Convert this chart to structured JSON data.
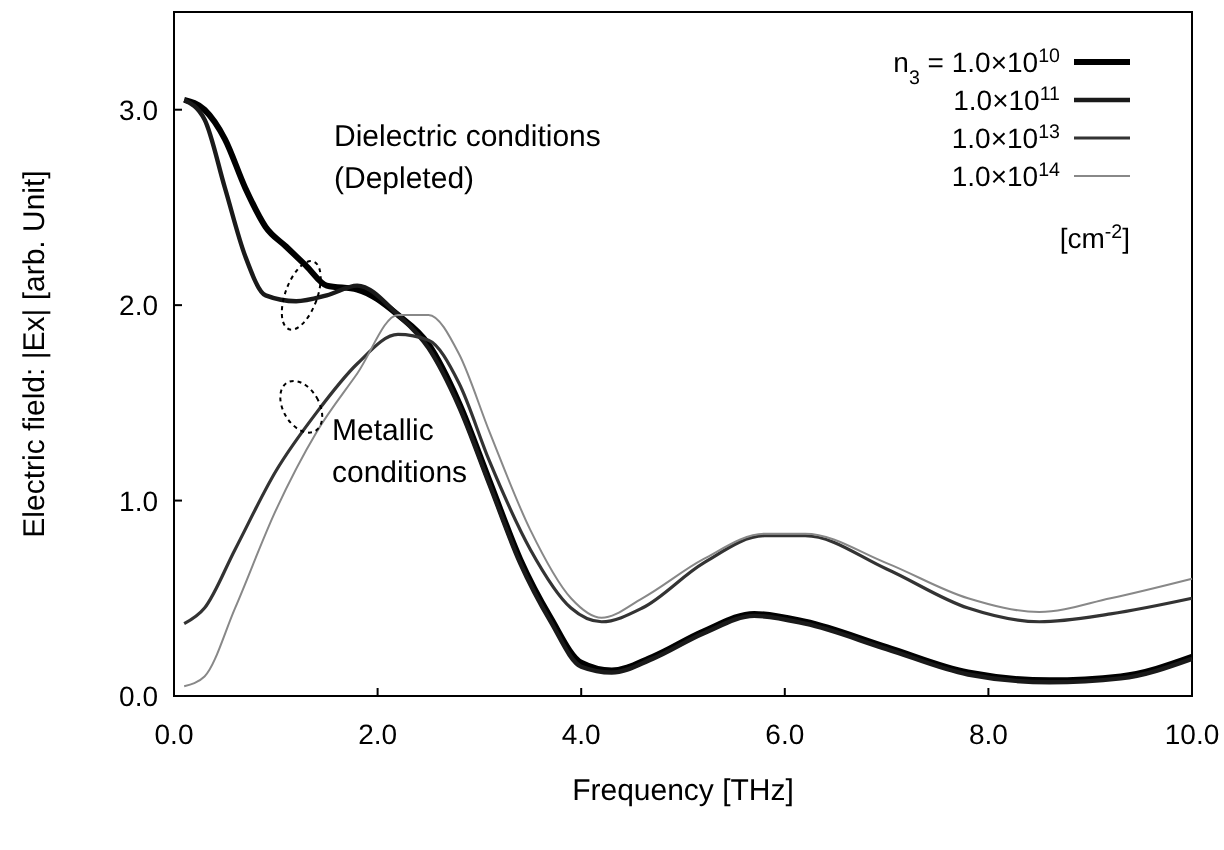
{
  "chart_data": {
    "type": "line",
    "xlabel": "Frequency [THz]",
    "ylabel": "Electric field: |Ex| [arb. Unit]",
    "xlim": [
      0,
      10
    ],
    "ylim": [
      0,
      3.5
    ],
    "xticks": [
      {
        "value": 0,
        "label": "0.0"
      },
      {
        "value": 2,
        "label": "2.0"
      },
      {
        "value": 4,
        "label": "4.0"
      },
      {
        "value": 6,
        "label": "6.0"
      },
      {
        "value": 8,
        "label": "8.0"
      },
      {
        "value": 10,
        "label": "10.0"
      }
    ],
    "yticks": [
      {
        "value": 0,
        "label": "0.0"
      },
      {
        "value": 1,
        "label": "1.0"
      },
      {
        "value": 2,
        "label": "2.0"
      },
      {
        "value": 3,
        "label": "3.0"
      }
    ],
    "grid": false,
    "legend": "top right",
    "marker": "none",
    "line_style": "solid",
    "series": [
      {
        "name": "n$_{3}$ = 1.0×10$^{10}$",
        "color": "#000000",
        "x": [
          0.1,
          0.3,
          0.5,
          0.7,
          0.9,
          1.1,
          1.3,
          1.5,
          1.8,
          2.2,
          2.5,
          2.8,
          3.1,
          3.4,
          3.7,
          4.0,
          4.3,
          4.7,
          5.2,
          5.7,
          6.2,
          7.0,
          7.8,
          8.6,
          9.3,
          10
        ],
        "values": [
          3.05,
          3.0,
          2.85,
          2.6,
          2.4,
          2.3,
          2.2,
          2.1,
          2.08,
          1.95,
          1.8,
          1.5,
          1.1,
          0.7,
          0.4,
          0.17,
          0.13,
          0.2,
          0.33,
          0.42,
          0.38,
          0.25,
          0.12,
          0.08,
          0.1,
          0.2
        ]
      },
      {
        "name": "1.0×10$^{11}$",
        "color": "#1a1a1a",
        "x": [
          0.1,
          0.3,
          0.5,
          0.7,
          0.9,
          1.2,
          1.5,
          1.8,
          2.2,
          2.5,
          2.8,
          3.1,
          3.4,
          3.7,
          4.0,
          4.3,
          4.7,
          5.2,
          5.7,
          6.2,
          7.0,
          7.8,
          8.6,
          9.3,
          10
        ],
        "values": [
          3.05,
          2.95,
          2.6,
          2.25,
          2.05,
          2.02,
          2.05,
          2.1,
          1.95,
          1.78,
          1.48,
          1.08,
          0.68,
          0.38,
          0.15,
          0.12,
          0.19,
          0.32,
          0.41,
          0.37,
          0.24,
          0.11,
          0.07,
          0.09,
          0.19
        ]
      },
      {
        "name": "1.0×10$^{13}$",
        "color": "#333333",
        "x": [
          0.1,
          0.3,
          0.6,
          1.0,
          1.4,
          1.8,
          2.2,
          2.5,
          2.8,
          3.1,
          3.5,
          3.9,
          4.2,
          4.6,
          5.2,
          5.8,
          6.2,
          7.0,
          7.8,
          8.5,
          9.2,
          10
        ],
        "values": [
          0.37,
          0.45,
          0.75,
          1.15,
          1.45,
          1.7,
          1.85,
          1.82,
          1.6,
          1.2,
          0.75,
          0.45,
          0.38,
          0.45,
          0.68,
          0.82,
          0.82,
          0.65,
          0.45,
          0.38,
          0.42,
          0.5
        ]
      },
      {
        "name": "1.0×10$^{14}$",
        "color": "#888888",
        "x": [
          0.1,
          0.3,
          0.6,
          1.0,
          1.4,
          1.8,
          2.2,
          2.5,
          2.8,
          3.1,
          3.5,
          3.9,
          4.2,
          4.6,
          5.2,
          5.8,
          6.2,
          7.0,
          7.8,
          8.5,
          9.2,
          10
        ],
        "values": [
          0.05,
          0.1,
          0.45,
          0.95,
          1.35,
          1.65,
          1.95,
          1.95,
          1.75,
          1.35,
          0.85,
          0.5,
          0.4,
          0.5,
          0.7,
          0.83,
          0.83,
          0.68,
          0.5,
          0.43,
          0.5,
          0.6
        ]
      }
    ],
    "annotations": [
      "Dielectric conditions\n(Depleted)",
      "Metallic\nconditions",
      "[cm$^{-2}$]"
    ]
  }
}
